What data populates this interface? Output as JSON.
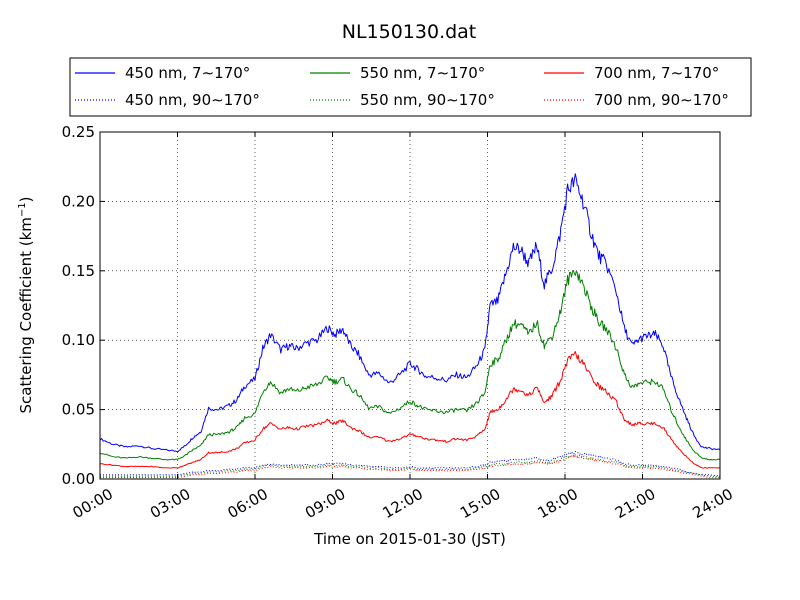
{
  "chart_data": {
    "type": "line",
    "title": "NL150130.dat",
    "xlabel": "Time on 2015-01-30 (JST)",
    "ylabel": "Scattering Coefficient (km",
    "ylabel_exponent": "−1",
    "ylabel_suffix": ")",
    "x_unit": "hours",
    "xlim": [
      0,
      24
    ],
    "ylim": [
      0,
      0.25
    ],
    "x_ticks": [
      0,
      3,
      6,
      9,
      12,
      15,
      18,
      21,
      24
    ],
    "x_tick_labels": [
      "00:00",
      "03:00",
      "06:00",
      "09:00",
      "12:00",
      "15:00",
      "18:00",
      "21:00",
      "24:00"
    ],
    "y_ticks": [
      0,
      0.05,
      0.1,
      0.15,
      0.2,
      0.25
    ],
    "y_tick_labels": [
      "0.00",
      "0.05",
      "0.10",
      "0.15",
      "0.20",
      "0.25"
    ],
    "grid": true,
    "legend_position": "top, above plot",
    "x": [
      0,
      0.5,
      1,
      1.5,
      2,
      2.5,
      3,
      3.3,
      3.6,
      3.9,
      4.2,
      4.6,
      5.0,
      5.3,
      5.6,
      6.0,
      6.3,
      6.6,
      7.0,
      7.3,
      7.6,
      8.0,
      8.4,
      8.8,
      9.1,
      9.4,
      9.7,
      10.0,
      10.4,
      10.8,
      11.2,
      11.6,
      12.0,
      12.3,
      12.6,
      13.0,
      13.4,
      13.8,
      14.2,
      14.6,
      14.9,
      15.1,
      15.4,
      15.7,
      16.0,
      16.3,
      16.6,
      16.9,
      17.2,
      17.5,
      17.8,
      18.1,
      18.4,
      18.7,
      19.0,
      19.3,
      19.6,
      20.0,
      20.3,
      20.6,
      20.9,
      21.2,
      21.5,
      21.8,
      22.1,
      22.4,
      22.7,
      23.0,
      23.3,
      23.6,
      24.0
    ],
    "series": [
      {
        "name": "450 nm, 7∼170°",
        "color": "#0000ff",
        "style": "solid",
        "values": [
          0.029,
          0.025,
          0.023,
          0.024,
          0.022,
          0.021,
          0.02,
          0.024,
          0.03,
          0.034,
          0.051,
          0.05,
          0.053,
          0.057,
          0.067,
          0.072,
          0.094,
          0.104,
          0.093,
          0.096,
          0.094,
          0.098,
          0.1,
          0.109,
          0.104,
          0.108,
          0.096,
          0.09,
          0.075,
          0.076,
          0.069,
          0.075,
          0.083,
          0.079,
          0.074,
          0.073,
          0.071,
          0.075,
          0.073,
          0.082,
          0.093,
          0.125,
          0.128,
          0.147,
          0.167,
          0.165,
          0.155,
          0.168,
          0.14,
          0.152,
          0.175,
          0.208,
          0.215,
          0.2,
          0.178,
          0.161,
          0.155,
          0.134,
          0.108,
          0.096,
          0.101,
          0.103,
          0.104,
          0.096,
          0.074,
          0.058,
          0.044,
          0.031,
          0.023,
          0.022,
          0.021
        ]
      },
      {
        "name": "450 nm, 90∼170°",
        "color": "#0000ff",
        "style": "dotted",
        "values": [
          0.003,
          0.003,
          0.003,
          0.003,
          0.003,
          0.003,
          0.003,
          0.004,
          0.005,
          0.005,
          0.006,
          0.006,
          0.007,
          0.007,
          0.008,
          0.008,
          0.01,
          0.011,
          0.01,
          0.01,
          0.01,
          0.01,
          0.01,
          0.011,
          0.011,
          0.011,
          0.01,
          0.01,
          0.009,
          0.009,
          0.008,
          0.008,
          0.009,
          0.008,
          0.008,
          0.008,
          0.008,
          0.008,
          0.008,
          0.009,
          0.01,
          0.012,
          0.013,
          0.013,
          0.014,
          0.014,
          0.014,
          0.015,
          0.013,
          0.014,
          0.016,
          0.018,
          0.019,
          0.018,
          0.017,
          0.016,
          0.015,
          0.014,
          0.011,
          0.01,
          0.01,
          0.01,
          0.01,
          0.009,
          0.008,
          0.007,
          0.005,
          0.004,
          0.003,
          0.003,
          0.002
        ]
      },
      {
        "name": "550 nm, 7∼170°",
        "color": "#008000",
        "style": "solid",
        "values": [
          0.019,
          0.016,
          0.015,
          0.016,
          0.015,
          0.014,
          0.014,
          0.017,
          0.021,
          0.024,
          0.032,
          0.032,
          0.034,
          0.037,
          0.044,
          0.047,
          0.063,
          0.07,
          0.062,
          0.065,
          0.063,
          0.066,
          0.068,
          0.073,
          0.07,
          0.072,
          0.065,
          0.061,
          0.051,
          0.052,
          0.047,
          0.051,
          0.056,
          0.053,
          0.05,
          0.049,
          0.048,
          0.05,
          0.049,
          0.055,
          0.062,
          0.083,
          0.086,
          0.099,
          0.112,
          0.111,
          0.104,
          0.113,
          0.096,
          0.103,
          0.119,
          0.143,
          0.151,
          0.14,
          0.125,
          0.113,
          0.108,
          0.094,
          0.075,
          0.066,
          0.069,
          0.07,
          0.07,
          0.065,
          0.05,
          0.038,
          0.028,
          0.02,
          0.015,
          0.014,
          0.014
        ]
      },
      {
        "name": "550 nm, 90∼170°",
        "color": "#008000",
        "style": "dotted",
        "values": [
          0.002,
          0.002,
          0.002,
          0.002,
          0.002,
          0.002,
          0.002,
          0.003,
          0.004,
          0.004,
          0.005,
          0.005,
          0.006,
          0.006,
          0.007,
          0.007,
          0.009,
          0.01,
          0.009,
          0.009,
          0.009,
          0.009,
          0.009,
          0.01,
          0.01,
          0.01,
          0.009,
          0.009,
          0.008,
          0.008,
          0.007,
          0.007,
          0.008,
          0.007,
          0.007,
          0.007,
          0.007,
          0.007,
          0.007,
          0.008,
          0.009,
          0.01,
          0.011,
          0.011,
          0.012,
          0.012,
          0.012,
          0.013,
          0.012,
          0.012,
          0.014,
          0.016,
          0.017,
          0.016,
          0.015,
          0.014,
          0.013,
          0.012,
          0.01,
          0.009,
          0.009,
          0.009,
          0.009,
          0.008,
          0.007,
          0.006,
          0.005,
          0.004,
          0.003,
          0.002,
          0.002
        ]
      },
      {
        "name": "700 nm, 7∼170°",
        "color": "#ff0000",
        "style": "solid",
        "values": [
          0.011,
          0.01,
          0.009,
          0.009,
          0.009,
          0.008,
          0.008,
          0.01,
          0.012,
          0.014,
          0.019,
          0.019,
          0.02,
          0.022,
          0.026,
          0.028,
          0.036,
          0.04,
          0.036,
          0.037,
          0.036,
          0.038,
          0.039,
          0.042,
          0.04,
          0.042,
          0.037,
          0.035,
          0.03,
          0.03,
          0.027,
          0.029,
          0.032,
          0.031,
          0.029,
          0.028,
          0.027,
          0.029,
          0.028,
          0.031,
          0.036,
          0.048,
          0.05,
          0.057,
          0.065,
          0.064,
          0.06,
          0.066,
          0.055,
          0.06,
          0.07,
          0.085,
          0.09,
          0.083,
          0.074,
          0.067,
          0.063,
          0.055,
          0.043,
          0.039,
          0.04,
          0.04,
          0.04,
          0.037,
          0.029,
          0.022,
          0.016,
          0.011,
          0.008,
          0.008,
          0.008
        ]
      },
      {
        "name": "700 nm, 90∼170°",
        "color": "#ff0000",
        "style": "dotted",
        "values": [
          0.001,
          0.001,
          0.001,
          0.001,
          0.001,
          0.001,
          0.001,
          0.002,
          0.003,
          0.003,
          0.004,
          0.004,
          0.005,
          0.005,
          0.006,
          0.006,
          0.008,
          0.009,
          0.008,
          0.008,
          0.008,
          0.008,
          0.008,
          0.009,
          0.009,
          0.009,
          0.008,
          0.008,
          0.007,
          0.007,
          0.006,
          0.006,
          0.007,
          0.006,
          0.006,
          0.006,
          0.006,
          0.006,
          0.006,
          0.007,
          0.008,
          0.009,
          0.01,
          0.01,
          0.011,
          0.011,
          0.011,
          0.012,
          0.011,
          0.011,
          0.013,
          0.015,
          0.016,
          0.015,
          0.014,
          0.013,
          0.012,
          0.011,
          0.009,
          0.008,
          0.008,
          0.008,
          0.008,
          0.007,
          0.006,
          0.005,
          0.004,
          0.003,
          0.002,
          0.001,
          0.001
        ]
      }
    ]
  }
}
